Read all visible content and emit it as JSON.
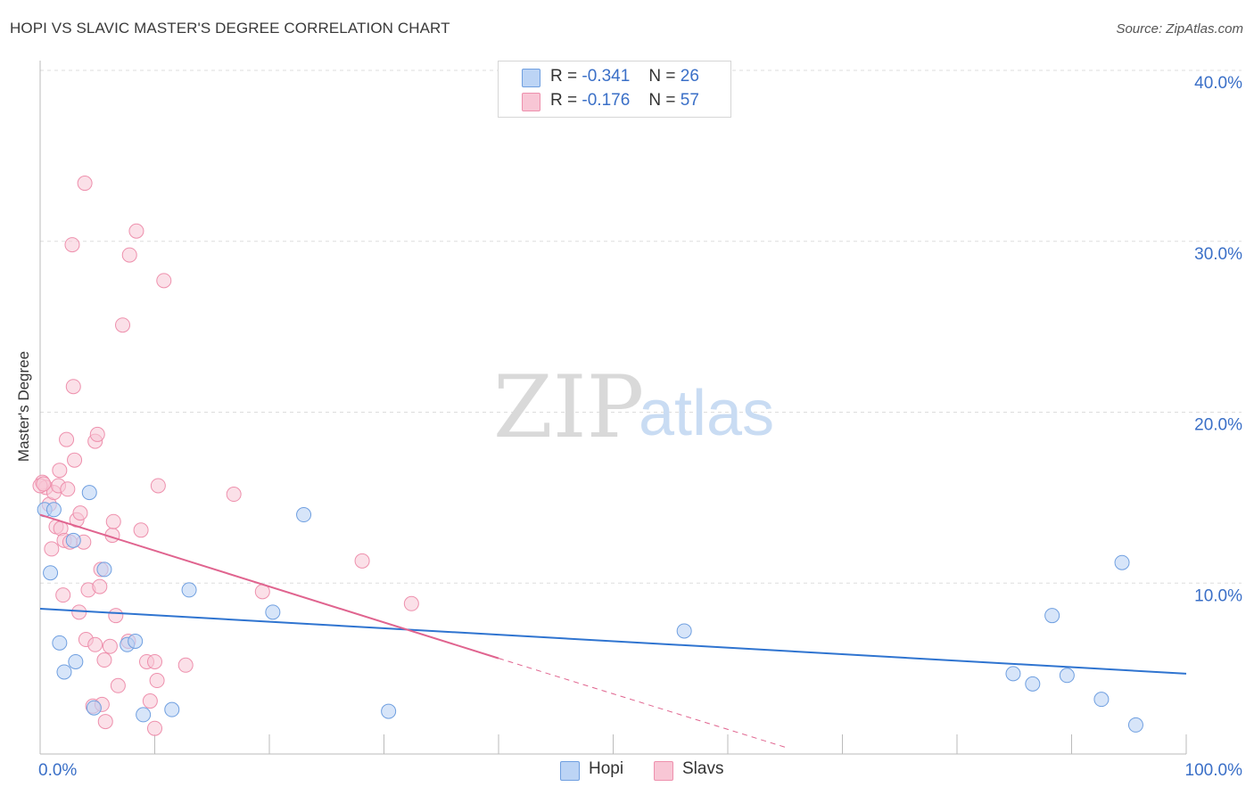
{
  "title": "HOPI VS SLAVIC MASTER'S DEGREE CORRELATION CHART",
  "source": "Source: ZipAtlas.com",
  "watermark": {
    "zip": "ZIP",
    "atlas": "atlas"
  },
  "legend": {
    "hopi": {
      "r_label": "R =",
      "r_value": "-0.341",
      "n_label": "N =",
      "n_value": "26"
    },
    "slavs": {
      "r_label": "R =",
      "r_value": "-0.176",
      "n_label": "N =",
      "n_value": "57"
    }
  },
  "bottom_legend": {
    "hopi": "Hopi",
    "slavs": "Slavs"
  },
  "colors": {
    "hopi_fill": "#bcd4f5",
    "hopi_stroke": "#6f9fe0",
    "hopi_line": "#2f74d0",
    "slavs_fill": "#f8c6d5",
    "slavs_stroke": "#ee90ad",
    "slavs_line": "#e0648f",
    "axis_text": "#3a6fc7",
    "grid": "#dddddd"
  },
  "chart_data": {
    "type": "scatter",
    "title": "HOPI VS SLAVIC MASTER'S DEGREE CORRELATION CHART",
    "xlabel": "",
    "ylabel": "Master's Degree",
    "xlim": [
      0,
      100
    ],
    "ylim": [
      0,
      40
    ],
    "x_tick_labels": [
      "0.0%",
      "100.0%"
    ],
    "y_ticks": [
      10,
      20,
      30,
      40
    ],
    "y_tick_labels": [
      "10.0%",
      "20.0%",
      "30.0%",
      "40.0%"
    ],
    "series": [
      {
        "name": "Hopi",
        "r": -0.341,
        "n": 26,
        "trend": {
          "x0": 0,
          "y0": 8.5,
          "x1": 100,
          "y1": 4.7
        },
        "points": [
          [
            0.4,
            14.3
          ],
          [
            0.9,
            10.6
          ],
          [
            1.2,
            14.3
          ],
          [
            1.7,
            6.5
          ],
          [
            2.1,
            4.8
          ],
          [
            2.9,
            12.5
          ],
          [
            3.1,
            5.4
          ],
          [
            4.3,
            15.3
          ],
          [
            4.7,
            2.7
          ],
          [
            5.6,
            10.8
          ],
          [
            7.6,
            6.4
          ],
          [
            8.3,
            6.6
          ],
          [
            9.0,
            2.3
          ],
          [
            11.5,
            2.6
          ],
          [
            13.0,
            9.6
          ],
          [
            20.3,
            8.3
          ],
          [
            23.0,
            14.0
          ],
          [
            30.4,
            2.5
          ],
          [
            56.2,
            7.2
          ],
          [
            84.9,
            4.7
          ],
          [
            86.6,
            4.1
          ],
          [
            88.3,
            8.1
          ],
          [
            89.6,
            4.6
          ],
          [
            92.6,
            3.2
          ],
          [
            94.4,
            11.2
          ],
          [
            95.6,
            1.7
          ]
        ]
      },
      {
        "name": "Slavs",
        "r": -0.176,
        "n": 57,
        "trend": {
          "x0": 0,
          "y0": 14.0,
          "x1": 40,
          "y1": 5.6
        },
        "trend_dashed": {
          "x0": 40,
          "y0": 5.6,
          "x1": 65,
          "y1": 0.4
        },
        "points": [
          [
            0.2,
            15.9
          ],
          [
            0.5,
            15.6
          ],
          [
            0.8,
            14.6
          ],
          [
            1.0,
            12.0
          ],
          [
            1.2,
            15.3
          ],
          [
            1.4,
            13.3
          ],
          [
            1.7,
            16.6
          ],
          [
            1.8,
            13.2
          ],
          [
            2.0,
            9.3
          ],
          [
            2.1,
            12.5
          ],
          [
            2.3,
            18.4
          ],
          [
            2.6,
            12.4
          ],
          [
            2.8,
            29.8
          ],
          [
            2.9,
            21.5
          ],
          [
            3.0,
            17.2
          ],
          [
            3.2,
            13.7
          ],
          [
            3.4,
            8.3
          ],
          [
            3.5,
            14.1
          ],
          [
            3.8,
            12.4
          ],
          [
            3.9,
            33.4
          ],
          [
            4.0,
            6.7
          ],
          [
            4.2,
            9.6
          ],
          [
            4.6,
            2.8
          ],
          [
            4.8,
            6.4
          ],
          [
            4.8,
            18.3
          ],
          [
            5.0,
            18.7
          ],
          [
            5.2,
            9.8
          ],
          [
            5.3,
            10.8
          ],
          [
            5.4,
            2.9
          ],
          [
            5.6,
            5.5
          ],
          [
            5.7,
            1.9
          ],
          [
            6.1,
            6.3
          ],
          [
            6.3,
            12.8
          ],
          [
            6.4,
            13.6
          ],
          [
            6.6,
            8.1
          ],
          [
            6.8,
            4.0
          ],
          [
            7.2,
            25.1
          ],
          [
            7.7,
            6.6
          ],
          [
            7.8,
            29.2
          ],
          [
            8.4,
            30.6
          ],
          [
            8.8,
            13.1
          ],
          [
            9.3,
            5.4
          ],
          [
            9.6,
            3.1
          ],
          [
            10.0,
            1.5
          ],
          [
            10.0,
            5.4
          ],
          [
            10.2,
            4.3
          ],
          [
            10.3,
            15.7
          ],
          [
            10.8,
            27.7
          ],
          [
            12.7,
            5.2
          ],
          [
            16.9,
            15.2
          ],
          [
            19.4,
            9.5
          ],
          [
            28.1,
            11.3
          ],
          [
            32.4,
            8.8
          ],
          [
            0.0,
            15.7
          ],
          [
            0.3,
            15.8
          ],
          [
            1.6,
            15.7
          ],
          [
            2.4,
            15.5
          ]
        ]
      }
    ]
  }
}
